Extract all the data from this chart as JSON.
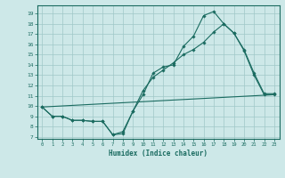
{
  "xlabel": "Humidex (Indice chaleur)",
  "bg_color": "#cde8e8",
  "grid_color": "#a0c8c8",
  "line_color": "#1a6b60",
  "xlim": [
    -0.5,
    23.5
  ],
  "ylim": [
    6.8,
    19.8
  ],
  "yticks": [
    7,
    8,
    9,
    10,
    11,
    12,
    13,
    14,
    15,
    16,
    17,
    18,
    19
  ],
  "xticks": [
    0,
    1,
    2,
    3,
    4,
    5,
    6,
    7,
    8,
    9,
    10,
    11,
    12,
    13,
    14,
    15,
    16,
    17,
    18,
    19,
    20,
    21,
    22,
    23
  ],
  "series": [
    {
      "x": [
        0,
        1,
        2,
        3,
        4,
        5,
        6,
        7,
        8,
        9,
        10,
        11,
        12,
        13,
        14,
        15,
        16,
        17,
        18,
        19,
        20,
        21,
        22,
        23
      ],
      "y": [
        9.9,
        9.0,
        9.0,
        8.6,
        8.6,
        8.5,
        8.5,
        7.2,
        7.3,
        9.5,
        11.1,
        13.2,
        13.8,
        14.0,
        15.8,
        16.8,
        18.8,
        19.2,
        18.0,
        17.1,
        15.4,
        13.0,
        11.1,
        11.1
      ],
      "marker": true
    },
    {
      "x": [
        0,
        1,
        2,
        3,
        4,
        5,
        6,
        7,
        8,
        9,
        10,
        11,
        12,
        13,
        14,
        15,
        16,
        17,
        18,
        19,
        20,
        21,
        22,
        23
      ],
      "y": [
        9.9,
        9.0,
        9.0,
        8.6,
        8.6,
        8.5,
        8.5,
        7.2,
        7.5,
        9.5,
        11.5,
        12.8,
        13.5,
        14.2,
        15.0,
        15.5,
        16.2,
        17.2,
        18.0,
        17.1,
        15.5,
        13.2,
        11.2,
        11.2
      ],
      "marker": true
    },
    {
      "x": [
        0,
        23
      ],
      "y": [
        9.9,
        11.1
      ],
      "marker": false
    }
  ]
}
